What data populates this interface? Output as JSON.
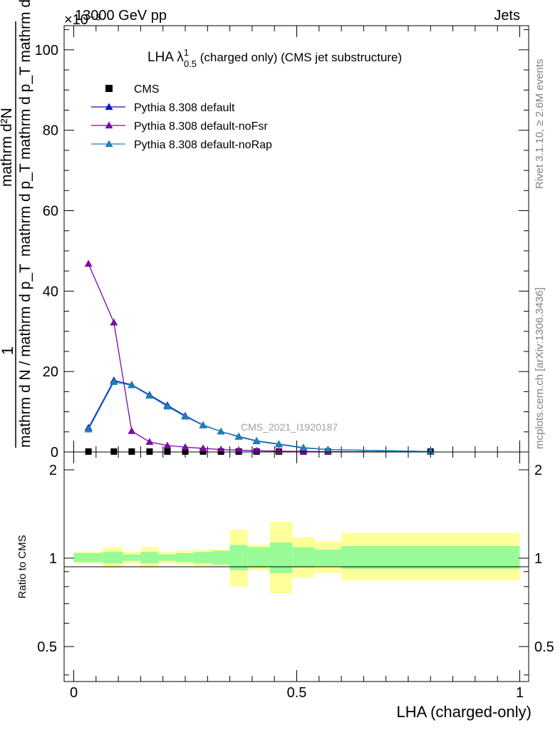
{
  "header": {
    "left": "13000 GeV pp",
    "right": "Jets",
    "exponent": "×10⁻³"
  },
  "side_labels": {
    "rivet": "Rivet 3.1.10, ≥ 2.6M events",
    "mcplots": "mcplots.cern.ch [arXiv:1306.3436]"
  },
  "watermark": "CMS_2021_I1920187",
  "chart_data": [
    {
      "type": "line",
      "title": "LHA λ¹₀.₅ (charged only) (CMS jet substructure)",
      "title_parts": {
        "main": "LHA λ",
        "sup": "1",
        "sub": "0.5",
        "rest": " (charged only) (CMS jet substructure)"
      },
      "ylabel_top": "1",
      "ylabel_bottom": "mathrm d N / mathrm d p_T mathrm d p_T mathrm d lambda",
      "ylabel_numerator": "mathrm d²N",
      "ylabel_denominator": "mathrm d p_T mathrm d p_T mathrm d lambda",
      "ylabel_left": "mathrm d N / mathrm d p_T",
      "ylim": [
        0,
        106
      ],
      "y_ticks": [
        0,
        20,
        40,
        60,
        80,
        100
      ],
      "xlim": [
        0,
        1
      ],
      "legend_position": "top-left",
      "x": [
        0.033,
        0.09,
        0.13,
        0.17,
        0.21,
        0.25,
        0.29,
        0.33,
        0.37,
        0.41,
        0.46,
        0.515,
        0.57,
        0.8
      ],
      "series": [
        {
          "name": "CMS",
          "color": "#000000",
          "marker": "square",
          "values": [
            0.1,
            0.1,
            0.1,
            0.1,
            0.1,
            0.1,
            0.1,
            0.1,
            0.1,
            0.1,
            0.1,
            0.1,
            0.1,
            0.1
          ]
        },
        {
          "name": "Pythia 8.308 default",
          "color": "#0a14c8",
          "marker": "triangle",
          "values": [
            6.0,
            17.8,
            16.7,
            14.2,
            11.6,
            9.0,
            6.7,
            5.1,
            3.8,
            2.7,
            1.9,
            1.0,
            0.6,
            0.1
          ]
        },
        {
          "name": "Pythia 8.308 default-noFsr",
          "color": "#7a0aa8",
          "marker": "triangle",
          "values": [
            46.8,
            32.2,
            5.2,
            2.5,
            1.6,
            1.2,
            0.9,
            0.6,
            0.45,
            0.3,
            0.2,
            0.12,
            0.08,
            0.02
          ]
        },
        {
          "name": "Pythia 8.308 default-noRap",
          "color": "#1a82b4",
          "marker": "triangle",
          "values": [
            5.6,
            17.4,
            16.6,
            14.0,
            11.3,
            8.8,
            6.6,
            5.1,
            3.9,
            2.8,
            2.0,
            1.1,
            0.6,
            0.1
          ]
        }
      ]
    },
    {
      "type": "area",
      "ylabel": "Ratio to CMS",
      "xlabel": "LHA (charged-only)",
      "ylim": [
        0.38,
        2.3
      ],
      "y_ticks": [
        0.5,
        1,
        2
      ],
      "x_ticks": [
        0,
        0.5,
        1
      ],
      "bin_edges": [
        0,
        0.065,
        0.11,
        0.15,
        0.19,
        0.23,
        0.27,
        0.31,
        0.35,
        0.39,
        0.44,
        0.49,
        0.54,
        0.6,
        1.0
      ],
      "inner_band": [
        [
          0.97,
          1.04
        ],
        [
          0.96,
          1.05
        ],
        [
          0.98,
          1.03
        ],
        [
          0.96,
          1.05
        ],
        [
          0.98,
          1.03
        ],
        [
          0.97,
          1.04
        ],
        [
          0.96,
          1.05
        ],
        [
          0.95,
          1.06
        ],
        [
          0.91,
          1.11
        ],
        [
          0.93,
          1.09
        ],
        [
          0.89,
          1.13
        ],
        [
          0.93,
          1.09
        ],
        [
          0.94,
          1.07
        ],
        [
          0.92,
          1.1
        ]
      ],
      "outer_band": [
        [
          0.96,
          1.05
        ],
        [
          0.93,
          1.09
        ],
        [
          0.96,
          1.05
        ],
        [
          0.93,
          1.09
        ],
        [
          0.96,
          1.05
        ],
        [
          0.95,
          1.06
        ],
        [
          0.94,
          1.07
        ],
        [
          0.94,
          1.07
        ],
        [
          0.8,
          1.25
        ],
        [
          0.91,
          1.11
        ],
        [
          0.76,
          1.33
        ],
        [
          0.86,
          1.18
        ],
        [
          0.89,
          1.14
        ],
        [
          0.84,
          1.22
        ]
      ],
      "inner_color": "#98fb98",
      "outer_color": "#ffff99",
      "reference_value": 1
    }
  ]
}
